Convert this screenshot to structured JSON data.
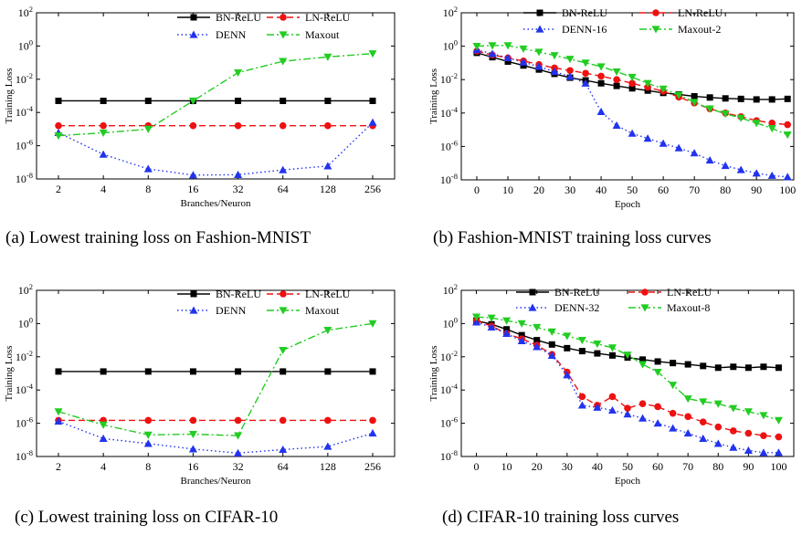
{
  "figure": {
    "captions": [
      "(a)  Lowest training loss on Fashion-MNIST",
      "(b)  Fashion-MNIST training loss curves",
      "(c)  Lowest training loss on CIFAR-10",
      "(d)  CIFAR-10 training loss curves"
    ]
  },
  "chart_data": [
    {
      "type": "line",
      "title": "",
      "xlabel": "Branches/Neuron",
      "ylabel": "Training Loss",
      "y_scale": "log",
      "ylim": [
        1e-08,
        100
      ],
      "y_ticks": [
        1e-08,
        1e-06,
        0.0001,
        0.01,
        1,
        100
      ],
      "x_scale": "categorical",
      "categories": [
        "2",
        "4",
        "8",
        "16",
        "32",
        "64",
        "128",
        "256"
      ],
      "legend": "top-right, two columns",
      "grid": false,
      "series": [
        {
          "name": "BN-ReLU",
          "color": "#000000",
          "dash": "solid",
          "marker": "square",
          "values": [
            0.0005,
            0.0005,
            0.0005,
            0.0005,
            0.0005,
            0.0005,
            0.0005,
            0.0005
          ]
        },
        {
          "name": "LN-ReLU",
          "color": "#ee1111",
          "dash": "dashed",
          "marker": "circle",
          "values": [
            1.6e-05,
            1.6e-05,
            1.6e-05,
            1.6e-05,
            1.6e-05,
            1.6e-05,
            1.6e-05,
            1.6e-05
          ]
        },
        {
          "name": "DENN",
          "color": "#2233ee",
          "dash": "dotted",
          "marker": "triangle-up",
          "values": [
            6e-06,
            3e-07,
            4e-08,
            1.7e-08,
            1.8e-08,
            3.5e-08,
            6e-08,
            2.5e-05
          ]
        },
        {
          "name": "Maxout",
          "color": "#22cc22",
          "dash": "dashdot",
          "marker": "triangle-down",
          "values": [
            4e-06,
            6e-06,
            1e-05,
            0.0005,
            0.025,
            0.12,
            0.22,
            0.35
          ]
        }
      ]
    },
    {
      "type": "line",
      "title": "",
      "xlabel": "Epoch",
      "ylabel": "Training Loss",
      "y_scale": "log",
      "ylim": [
        1e-08,
        100
      ],
      "y_ticks": [
        1e-08,
        1e-06,
        0.0001,
        0.01,
        1,
        100
      ],
      "xlim": [
        -5,
        102
      ],
      "x_ticks": [
        0,
        10,
        20,
        30,
        40,
        50,
        60,
        70,
        80,
        90,
        100
      ],
      "legend": "top-right, two columns",
      "grid": false,
      "series": [
        {
          "name": "BN-ReLU",
          "color": "#000000",
          "dash": "solid",
          "marker": "square",
          "x": [
            0,
            5,
            10,
            15,
            20,
            25,
            30,
            35,
            40,
            45,
            50,
            55,
            60,
            65,
            70,
            75,
            80,
            85,
            90,
            95,
            100
          ],
          "values": [
            0.4,
            0.22,
            0.12,
            0.07,
            0.04,
            0.022,
            0.013,
            0.009,
            0.006,
            0.0042,
            0.003,
            0.0022,
            0.0016,
            0.0013,
            0.001,
            0.00085,
            0.00075,
            0.0007,
            0.00065,
            0.00065,
            0.0007
          ]
        },
        {
          "name": "LN-ReLU",
          "color": "#ee1111",
          "dash": "dashed",
          "marker": "circle",
          "x": [
            0,
            5,
            10,
            15,
            20,
            25,
            30,
            35,
            40,
            45,
            50,
            55,
            60,
            65,
            70,
            75,
            80,
            85,
            90,
            95,
            100
          ],
          "values": [
            0.5,
            0.3,
            0.2,
            0.13,
            0.08,
            0.05,
            0.035,
            0.024,
            0.016,
            0.01,
            0.006,
            0.0035,
            0.002,
            0.0009,
            0.0004,
            0.00018,
            0.0001,
            6e-05,
            3.5e-05,
            2.5e-05,
            2e-05
          ]
        },
        {
          "name": "DENN-16",
          "color": "#2233ee",
          "dash": "dotted",
          "marker": "triangle-up",
          "x": [
            0,
            5,
            10,
            15,
            20,
            25,
            30,
            35,
            40,
            45,
            50,
            55,
            60,
            65,
            70,
            75,
            80,
            85,
            90,
            95,
            100
          ],
          "values": [
            0.6,
            0.35,
            0.2,
            0.11,
            0.06,
            0.03,
            0.015,
            0.006,
            0.00012,
            1.8e-05,
            6e-06,
            3e-06,
            1.5e-06,
            8e-07,
            4e-07,
            1.5e-07,
            7e-08,
            4e-08,
            2.5e-08,
            1.8e-08,
            1.5e-08
          ]
        },
        {
          "name": "Maxout-2",
          "color": "#22cc22",
          "dash": "dashdot",
          "marker": "triangle-down",
          "x": [
            0,
            5,
            10,
            15,
            20,
            25,
            30,
            35,
            40,
            45,
            50,
            55,
            60,
            65,
            70,
            75,
            80,
            85,
            90,
            95,
            100
          ],
          "values": [
            1.0,
            1.1,
            1.1,
            0.7,
            0.45,
            0.28,
            0.17,
            0.1,
            0.06,
            0.03,
            0.014,
            0.006,
            0.0028,
            0.0012,
            0.00045,
            0.00018,
            9e-05,
            5e-05,
            2.5e-05,
            1.2e-05,
            5e-06
          ]
        }
      ]
    },
    {
      "type": "line",
      "title": "",
      "xlabel": "Branches/Neuron",
      "ylabel": "Training Loss",
      "y_scale": "log",
      "ylim": [
        1e-08,
        100
      ],
      "y_ticks": [
        1e-08,
        1e-06,
        0.0001,
        0.01,
        1,
        100
      ],
      "x_scale": "categorical",
      "categories": [
        "2",
        "4",
        "8",
        "16",
        "32",
        "64",
        "128",
        "256"
      ],
      "legend": "top-right, two columns",
      "grid": false,
      "series": [
        {
          "name": "BN-ReLU",
          "color": "#000000",
          "dash": "solid",
          "marker": "square",
          "values": [
            0.0013,
            0.0013,
            0.0013,
            0.0013,
            0.0013,
            0.0013,
            0.0013,
            0.0013
          ]
        },
        {
          "name": "LN-ReLU",
          "color": "#ee1111",
          "dash": "dashed",
          "marker": "circle",
          "values": [
            1.5e-06,
            1.5e-06,
            1.5e-06,
            1.5e-06,
            1.5e-06,
            1.5e-06,
            1.5e-06,
            1.5e-06
          ]
        },
        {
          "name": "DENN",
          "color": "#2233ee",
          "dash": "dotted",
          "marker": "triangle-up",
          "values": [
            1.3e-06,
            1.2e-07,
            6e-08,
            2.8e-08,
            1.6e-08,
            2.6e-08,
            4e-08,
            2.5e-07
          ]
        },
        {
          "name": "Maxout",
          "color": "#22cc22",
          "dash": "dashdot",
          "marker": "triangle-down",
          "values": [
            5e-06,
            8e-07,
            2e-07,
            2.2e-07,
            1.8e-07,
            0.025,
            0.4,
            1.0
          ]
        }
      ]
    },
    {
      "type": "line",
      "title": "",
      "xlabel": "Epoch",
      "ylabel": "Training Loss",
      "y_scale": "log",
      "ylim": [
        1e-08,
        100
      ],
      "y_ticks": [
        1e-08,
        1e-06,
        0.0001,
        0.01,
        1,
        100
      ],
      "xlim": [
        -5,
        105
      ],
      "x_ticks": [
        0,
        10,
        20,
        30,
        40,
        50,
        60,
        70,
        80,
        90,
        100
      ],
      "legend": "top-right, two columns",
      "grid": false,
      "series": [
        {
          "name": "BN-ReLU",
          "color": "#000000",
          "dash": "solid",
          "marker": "square",
          "x": [
            0,
            5,
            10,
            15,
            20,
            25,
            30,
            35,
            40,
            45,
            50,
            55,
            60,
            65,
            70,
            75,
            80,
            85,
            90,
            95,
            100
          ],
          "values": [
            1.5,
            0.9,
            0.45,
            0.2,
            0.1,
            0.055,
            0.033,
            0.022,
            0.016,
            0.012,
            0.009,
            0.0068,
            0.0052,
            0.0042,
            0.0035,
            0.0028,
            0.0022,
            0.0025,
            0.0022,
            0.0025,
            0.0022
          ]
        },
        {
          "name": "LN-ReLU",
          "color": "#ee1111",
          "dash": "dashed",
          "marker": "circle",
          "x": [
            0,
            5,
            10,
            15,
            20,
            25,
            30,
            35,
            40,
            45,
            50,
            55,
            60,
            65,
            70,
            75,
            80,
            85,
            90,
            95,
            100
          ],
          "values": [
            1.5,
            0.7,
            0.25,
            0.12,
            0.05,
            0.014,
            0.0012,
            4e-05,
            1.2e-05,
            4e-05,
            8e-06,
            1.5e-05,
            1e-05,
            4e-06,
            2.5e-06,
            1.2e-06,
            6e-07,
            3.5e-07,
            2.5e-07,
            1.8e-07,
            1.5e-07
          ]
        },
        {
          "name": "DENN-32",
          "color": "#2233ee",
          "dash": "dotted",
          "marker": "triangle-up",
          "x": [
            0,
            5,
            10,
            15,
            20,
            25,
            30,
            35,
            40,
            45,
            50,
            55,
            60,
            65,
            70,
            75,
            80,
            85,
            90,
            95,
            100
          ],
          "values": [
            1.2,
            0.6,
            0.25,
            0.09,
            0.04,
            0.012,
            0.0008,
            1.2e-05,
            9e-06,
            6e-06,
            3.5e-06,
            2e-06,
            1e-06,
            5e-07,
            2.5e-07,
            1.2e-07,
            6e-08,
            3.5e-08,
            2.3e-08,
            1.7e-08,
            1.7e-08
          ]
        },
        {
          "name": "Maxout-8",
          "color": "#22cc22",
          "dash": "dashdot",
          "marker": "triangle-down",
          "x": [
            0,
            5,
            10,
            15,
            20,
            25,
            30,
            35,
            40,
            45,
            50,
            55,
            60,
            65,
            70,
            75,
            80,
            85,
            90,
            95,
            100
          ],
          "values": [
            2.5,
            2.2,
            1.5,
            1.0,
            0.6,
            0.32,
            0.18,
            0.1,
            0.06,
            0.035,
            0.013,
            0.0035,
            0.0012,
            0.0002,
            3e-05,
            2e-05,
            1.5e-05,
            8e-06,
            5e-06,
            3e-06,
            1.5e-06
          ]
        }
      ]
    }
  ]
}
